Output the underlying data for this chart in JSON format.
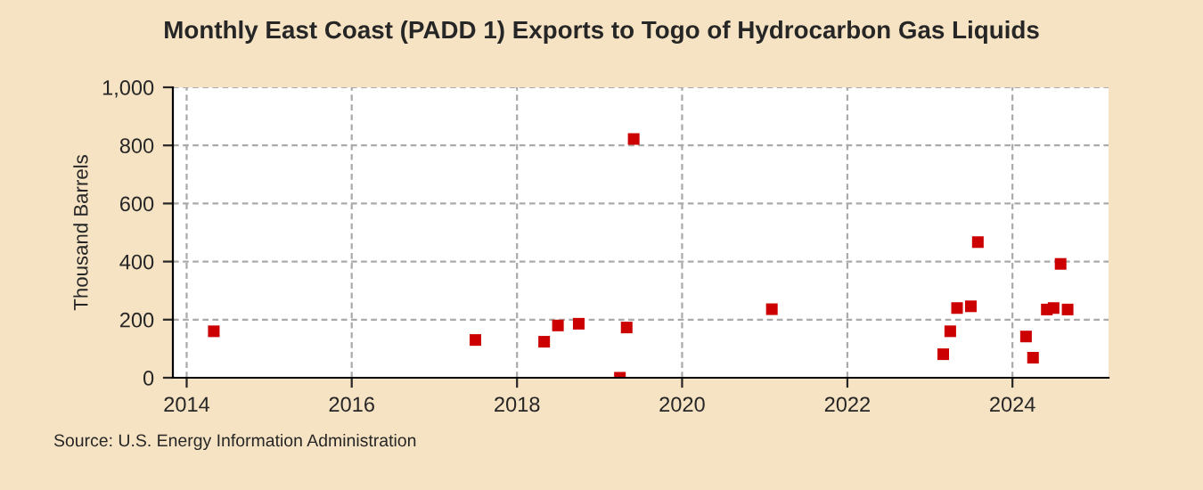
{
  "chart_data": {
    "type": "scatter",
    "title": "Monthly East Coast (PADD 1) Exports to Togo of Hydrocarbon Gas Liquids",
    "ylabel": "Thousand Barrels",
    "x": [
      "2014-05",
      "2017-07",
      "2018-05",
      "2018-07",
      "2018-10",
      "2019-04",
      "2019-05",
      "2019-06",
      "2021-02",
      "2023-03",
      "2023-04",
      "2023-05",
      "2023-07",
      "2023-08",
      "2024-03",
      "2024-04",
      "2024-06",
      "2024-07",
      "2024-08",
      "2024-09"
    ],
    "series": [
      {
        "color": "#cc0000",
        "values": [
          160,
          130,
          124,
          180,
          186,
          0,
          173,
          822,
          236,
          81,
          160,
          240,
          246,
          467,
          142,
          69,
          235,
          240,
          392,
          235
        ]
      }
    ],
    "xlim": [
      "2013-11",
      "2025-03"
    ],
    "xticks": [
      "2014",
      "2016",
      "2018",
      "2020",
      "2022",
      "2024"
    ],
    "ylim": [
      0,
      1000
    ],
    "yticks": [
      0,
      200,
      400,
      600,
      800,
      {
        "value": 1000,
        "label": "1,000"
      }
    ],
    "grid": true,
    "marker": "square",
    "annotations": [
      "Source: U.S. Energy Information Administration"
    ]
  }
}
